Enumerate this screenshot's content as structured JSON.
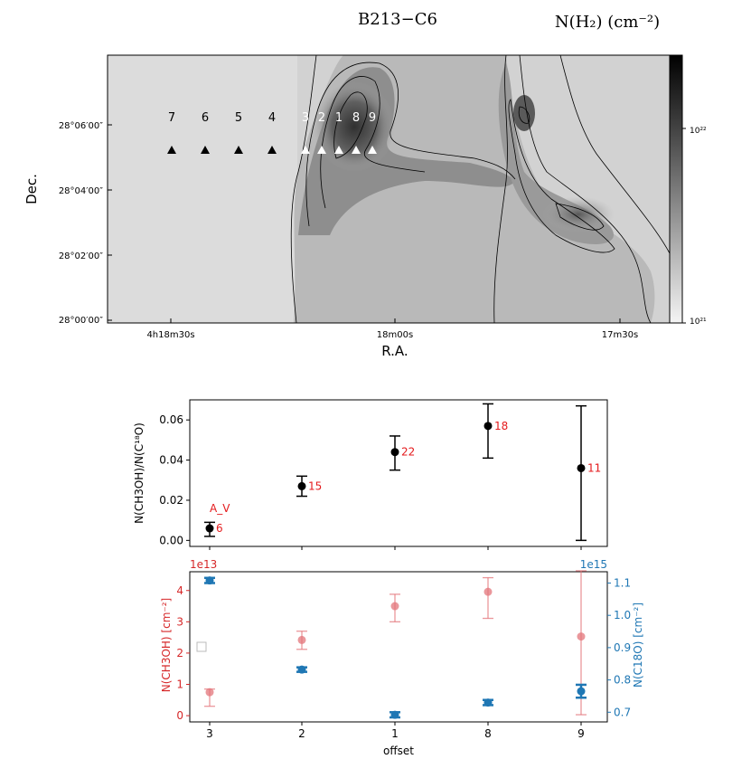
{
  "map": {
    "title": "B213−C6",
    "colorbar_label": "N(H₂) (cm⁻²)",
    "xlabel": "R.A.",
    "ylabel": "Dec.",
    "xticks": [
      "4h18m30s",
      "18m00s",
      "17m30s"
    ],
    "yticks": [
      "28°00′00″",
      "28°02′00″",
      "28°04′00″",
      "28°06′00″"
    ],
    "colorbar_ticks": [
      "10²²",
      "10²¹"
    ],
    "markers": [
      {
        "label": "7",
        "color": "#000000"
      },
      {
        "label": "6",
        "color": "#000000"
      },
      {
        "label": "5",
        "color": "#000000"
      },
      {
        "label": "4",
        "color": "#000000"
      },
      {
        "label": "3",
        "color": "#ffffff"
      },
      {
        "label": "2",
        "color": "#ffffff"
      },
      {
        "label": "1",
        "color": "#ffffff"
      },
      {
        "label": "8",
        "color": "#ffffff"
      },
      {
        "label": "9",
        "color": "#ffffff"
      }
    ]
  },
  "chart_data": [
    {
      "type": "scatter",
      "ylabel": "N(CH3OH)/N(C¹⁸O)",
      "categories": [
        "3",
        "2",
        "1",
        "8",
        "9"
      ],
      "values": [
        0.006,
        0.027,
        0.044,
        0.057,
        0.036
      ],
      "err_low": [
        0.004,
        0.005,
        0.009,
        0.016,
        0.036
      ],
      "err_high": [
        0.003,
        0.005,
        0.008,
        0.011,
        0.031
      ],
      "point_labels": [
        "6",
        "15",
        "22",
        "18",
        "11"
      ],
      "annotation": "A_V",
      "ylim": [
        -0.003,
        0.07
      ],
      "yticks": [
        "0.00",
        "0.02",
        "0.04",
        "0.06"
      ],
      "colors": {
        "points": "#000000",
        "labels": "#e41a1c"
      }
    },
    {
      "type": "scatter",
      "xlabel": "offset",
      "categories": [
        "3",
        "2",
        "1",
        "8",
        "9"
      ],
      "series": [
        {
          "axis": "left",
          "values": [
            0.75,
            2.42,
            3.5,
            3.96,
            2.53
          ],
          "err_low": [
            0.45,
            0.3,
            0.5,
            0.85,
            2.5
          ],
          "err_high": [
            0.1,
            0.28,
            0.38,
            0.45,
            2.1
          ],
          "color": "#e3747a"
        },
        {
          "axis": "right",
          "values": [
            1.108,
            0.832,
            0.692,
            0.73,
            0.765
          ],
          "err_low": [
            0.008,
            0.007,
            0.008,
            0.008,
            0.02
          ],
          "err_high": [
            0.008,
            0.007,
            0.008,
            0.008,
            0.02
          ],
          "color": "#1f77b4"
        }
      ],
      "left_axis": {
        "label": "N(CH3OH) [cm⁻²]",
        "scale": "1e13",
        "ylim": [
          -0.2,
          4.6
        ],
        "ticks": [
          "0",
          "1",
          "2",
          "3",
          "4"
        ]
      },
      "right_axis": {
        "label": "N(C18O) [cm⁻²]",
        "scale": "1e15",
        "ylim": [
          0.67,
          1.135
        ],
        "ticks": [
          "0.7",
          "0.8",
          "0.9",
          "1.0",
          "1.1"
        ]
      }
    }
  ]
}
